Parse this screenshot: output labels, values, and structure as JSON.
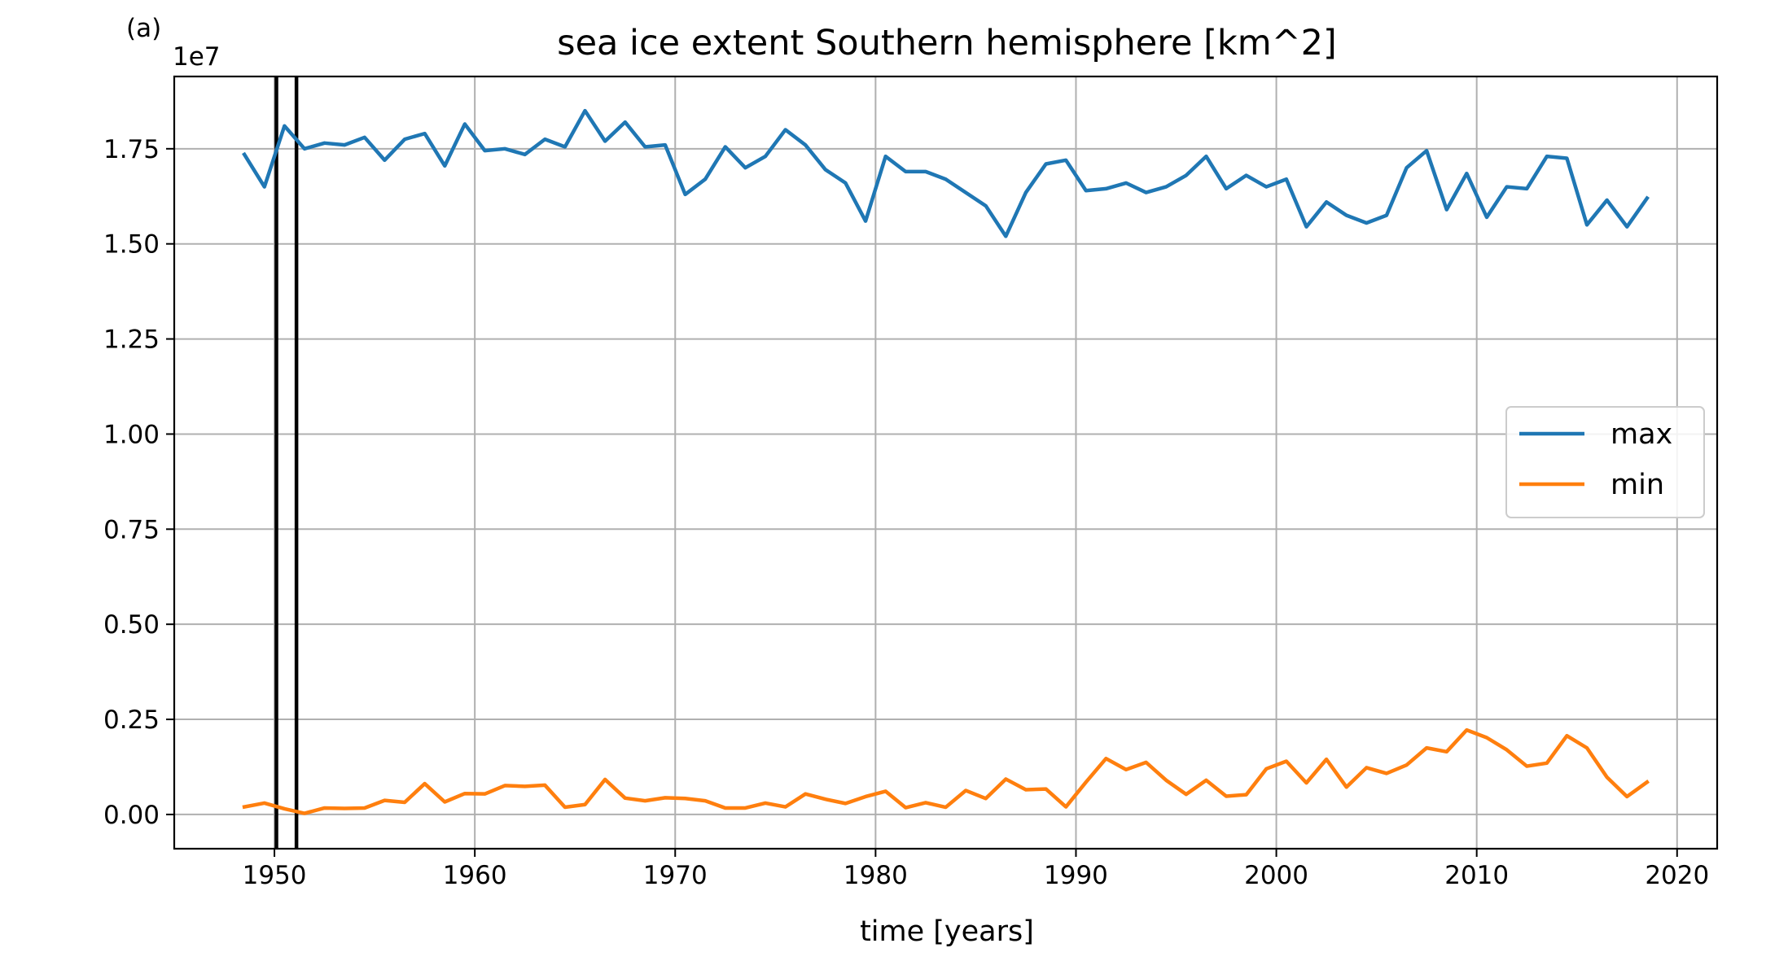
{
  "chart_data": {
    "type": "line",
    "panel_label": "(a)",
    "title": "sea ice extent Southern hemisphere [km^2]",
    "xlabel": "time [years]",
    "ylabel": "",
    "y_offset_label": "1e7",
    "y_scale": 10000000,
    "xlim": [
      1945,
      2022
    ],
    "ylim": [
      -0.09,
      1.94
    ],
    "xticks": [
      1950,
      1960,
      1970,
      1980,
      1990,
      2000,
      2010,
      2020
    ],
    "xtick_labels": [
      "1950",
      "1960",
      "1970",
      "1980",
      "1990",
      "2000",
      "2010",
      "2020"
    ],
    "yticks": [
      0.0,
      0.25,
      0.5,
      0.75,
      1.0,
      1.25,
      1.5,
      1.75
    ],
    "ytick_labels": [
      "0.00",
      "0.25",
      "0.50",
      "0.75",
      "1.00",
      "1.25",
      "1.50",
      "1.75"
    ],
    "grid": true,
    "legend_position": "center-right",
    "vertical_lines": [
      1950.1,
      1951.1
    ],
    "x": [
      1948.5,
      1949.5,
      1950.5,
      1951.5,
      1952.5,
      1953.5,
      1954.5,
      1955.5,
      1956.5,
      1957.5,
      1958.5,
      1959.5,
      1960.5,
      1961.5,
      1962.5,
      1963.5,
      1964.5,
      1965.5,
      1966.5,
      1967.5,
      1968.5,
      1969.5,
      1970.5,
      1971.5,
      1972.5,
      1973.5,
      1974.5,
      1975.5,
      1976.5,
      1977.5,
      1978.5,
      1979.5,
      1980.5,
      1981.5,
      1982.5,
      1983.5,
      1984.5,
      1985.5,
      1986.5,
      1987.5,
      1988.5,
      1989.5,
      1990.5,
      1991.5,
      1992.5,
      1993.5,
      1994.5,
      1995.5,
      1996.5,
      1997.5,
      1998.5,
      1999.5,
      2000.5,
      2001.5,
      2002.5,
      2003.5,
      2004.5,
      2005.5,
      2006.5,
      2007.5,
      2008.5,
      2009.5,
      2010.5,
      2011.5,
      2012.5,
      2013.5,
      2014.5,
      2015.5,
      2016.5,
      2017.5,
      2018.5
    ],
    "series": [
      {
        "name": "max",
        "color": "#1f77b4",
        "values": [
          1.735,
          1.65,
          1.81,
          1.75,
          1.765,
          1.76,
          1.78,
          1.72,
          1.775,
          1.79,
          1.705,
          1.815,
          1.745,
          1.75,
          1.735,
          1.775,
          1.755,
          1.85,
          1.77,
          1.82,
          1.755,
          1.76,
          1.63,
          1.67,
          1.755,
          1.7,
          1.73,
          1.8,
          1.76,
          1.695,
          1.66,
          1.56,
          1.73,
          1.69,
          1.69,
          1.67,
          1.635,
          1.6,
          1.52,
          1.635,
          1.71,
          1.72,
          1.64,
          1.645,
          1.66,
          1.635,
          1.65,
          1.68,
          1.73,
          1.645,
          1.68,
          1.65,
          1.67,
          1.545,
          1.61,
          1.575,
          1.555,
          1.575,
          1.7,
          1.745,
          1.59,
          1.685,
          1.57,
          1.65,
          1.645,
          1.73,
          1.725,
          1.55,
          1.615,
          1.545,
          1.62
        ]
      },
      {
        "name": "min",
        "color": "#ff7f0e",
        "values": [
          0.02,
          0.03,
          0.015,
          0.003,
          0.017,
          0.016,
          0.017,
          0.037,
          0.032,
          0.081,
          0.033,
          0.055,
          0.054,
          0.076,
          0.074,
          0.077,
          0.019,
          0.026,
          0.092,
          0.043,
          0.036,
          0.044,
          0.042,
          0.036,
          0.017,
          0.017,
          0.03,
          0.02,
          0.054,
          0.04,
          0.029,
          0.047,
          0.061,
          0.018,
          0.031,
          0.019,
          0.063,
          0.042,
          0.093,
          0.065,
          0.067,
          0.02,
          0.085,
          0.147,
          0.118,
          0.137,
          0.09,
          0.053,
          0.09,
          0.048,
          0.052,
          0.12,
          0.14,
          0.083,
          0.145,
          0.072,
          0.123,
          0.108,
          0.13,
          0.175,
          0.165,
          0.222,
          0.202,
          0.17,
          0.127,
          0.135,
          0.207,
          0.175,
          0.098,
          0.047,
          0.085
        ]
      }
    ]
  }
}
